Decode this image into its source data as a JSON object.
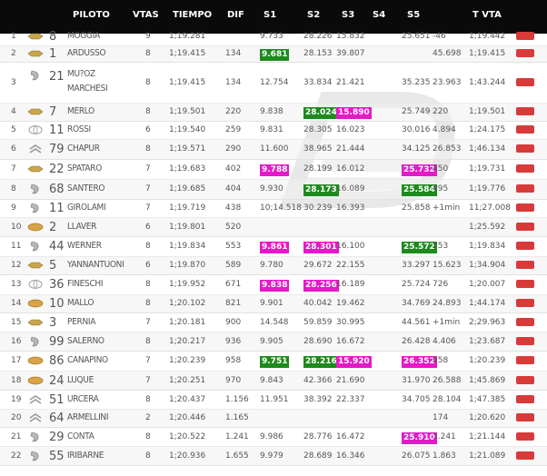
{
  "table": {
    "headers": {
      "piloto": "PILOTO",
      "vtas": "VTAS",
      "tiempo": "TIEMPO",
      "dif": "DIF",
      "s1": "S1",
      "s2": "S2",
      "s3": "S3",
      "s4": "S4",
      "s5": "S5",
      "tvta": "T VTA"
    },
    "colors": {
      "sector_best_green": "#1d8a1d",
      "sector_best_magenta": "#e619c8",
      "action_button": "#d83a3a"
    },
    "rows": [
      {
        "pos": "1",
        "num": "8",
        "name": "MOGGIA",
        "name2": "",
        "vtas": "9",
        "tiempo": "1;19.281",
        "dif": "",
        "s1": "9.733",
        "s2": "28.226",
        "s3": "15.832",
        "s5": "25.651",
        "s5b": "-46",
        "tvta": "1;19.442",
        "logo": "chevrolet"
      },
      {
        "pos": "2",
        "num": "1",
        "name": "ARDUSSO",
        "name2": "",
        "vtas": "8",
        "tiempo": "1;19.415",
        "dif": "134",
        "s1": "9.681",
        "s1h": "g",
        "s2": "28.153",
        "s3": "39.807",
        "s5": "",
        "s5b": "45.698",
        "tvta": "1;19.415",
        "logo": "chevrolet"
      },
      {
        "pos": "3",
        "num": "21",
        "name": "MU?OZ",
        "name2": "MARCHESI",
        "vtas": "8",
        "tiempo": "1;19.415",
        "dif": "134",
        "s1": "12.754",
        "s2": "33.834",
        "s3": "21.421",
        "s5": "35.235",
        "s5b": "23.963",
        "tvta": "1;43.244",
        "logo": "peugeot"
      },
      {
        "pos": "4",
        "num": "7",
        "name": "MERLO",
        "name2": "",
        "vtas": "8",
        "tiempo": "1;19.501",
        "dif": "220",
        "s1": "9.838",
        "s2": "28.024",
        "s2h": "g",
        "s3": "15.890",
        "s3h": "m",
        "s5": "25.749",
        "s5b": "220",
        "tvta": "1;19.501",
        "logo": "chevrolet"
      },
      {
        "pos": "5",
        "num": "11",
        "name": "ROSSI",
        "name2": "",
        "vtas": "6",
        "tiempo": "1;19.540",
        "dif": "259",
        "s1": "9.831",
        "s2": "28.305",
        "s3": "16.023",
        "s5": "30.016",
        "s5b": "4.894",
        "tvta": "1;24.175",
        "logo": "toyota"
      },
      {
        "pos": "6",
        "num": "79",
        "name": "CHAPUR",
        "name2": "",
        "vtas": "8",
        "tiempo": "1;19.571",
        "dif": "290",
        "s1": "11.600",
        "s2": "38.965",
        "s3": "21.444",
        "s5": "34.125",
        "s5b": "26.853",
        "tvta": "1;46.134",
        "logo": "citroen"
      },
      {
        "pos": "7",
        "num": "22",
        "name": "SPATARO",
        "name2": "",
        "vtas": "7",
        "tiempo": "1;19.683",
        "dif": "402",
        "s1": "9.788",
        "s1h": "m",
        "s2": "28.199",
        "s3": "16.012",
        "s5": "25.732",
        "s5h": "m",
        "s5b": "450",
        "tvta": "1;19.731",
        "logo": "chevrolet"
      },
      {
        "pos": "8",
        "num": "68",
        "name": "SANTERO",
        "name2": "",
        "vtas": "7",
        "tiempo": "1;19.685",
        "dif": "404",
        "s1": "9.930",
        "s2": "28.173",
        "s2h": "g",
        "s3": "16.089",
        "s5": "25.584",
        "s5h": "g",
        "s5b": "495",
        "tvta": "1;19.776",
        "logo": "peugeot"
      },
      {
        "pos": "9",
        "num": "11",
        "name": "GIROLAMI",
        "name2": "",
        "vtas": "7",
        "tiempo": "1;19.719",
        "dif": "438",
        "s1": "10;14.518",
        "s2": "30.239",
        "s3": "16.393",
        "s5": "25.858",
        "s5b": "+1min",
        "tvta": "11;27.008",
        "logo": "peugeot"
      },
      {
        "pos": "10",
        "num": "2",
        "name": "LLAVER",
        "name2": "",
        "vtas": "6",
        "tiempo": "1;19.801",
        "dif": "520",
        "s1": "",
        "s2": "",
        "s3": "",
        "s5": "",
        "s5b": "",
        "tvta": "1;25.592",
        "logo": "ford"
      },
      {
        "pos": "11",
        "num": "44",
        "name": "WERNER",
        "name2": "",
        "vtas": "8",
        "tiempo": "1;19.834",
        "dif": "553",
        "s1": "9.861",
        "s1h": "m",
        "s2": "28.301",
        "s2h": "m",
        "s3": "16.100",
        "s5": "25.572",
        "s5h": "g",
        "s5b": "553",
        "tvta": "1;19.834",
        "logo": "peugeot"
      },
      {
        "pos": "12",
        "num": "5",
        "name": "YANNANTUONI",
        "name2": "",
        "vtas": "6",
        "tiempo": "1;19.870",
        "dif": "589",
        "s1": "9.780",
        "s2": "29.672",
        "s3": "22.155",
        "s5": "33.297",
        "s5b": "15.623",
        "tvta": "1;34.904",
        "logo": "chevrolet"
      },
      {
        "pos": "13",
        "num": "36",
        "name": "FINESCHI",
        "name2": "",
        "vtas": "8",
        "tiempo": "1;19.952",
        "dif": "671",
        "s1": "9.838",
        "s1h": "m",
        "s2": "28.256",
        "s2h": "m",
        "s3": "16.189",
        "s5": "25.724",
        "s5b": "726",
        "tvta": "1;20.007",
        "logo": "toyota"
      },
      {
        "pos": "14",
        "num": "10",
        "name": "MALLO",
        "name2": "",
        "vtas": "8",
        "tiempo": "1;20.102",
        "dif": "821",
        "s1": "9.901",
        "s2": "40.042",
        "s3": "19.462",
        "s5": "34.769",
        "s5b": "24.893",
        "tvta": "1;44.174",
        "logo": "ford"
      },
      {
        "pos": "15",
        "num": "3",
        "name": "PERNIA",
        "name2": "",
        "vtas": "7",
        "tiempo": "1;20.181",
        "dif": "900",
        "s1": "14.548",
        "s2": "59.859",
        "s3": "30.995",
        "s5": "44.561",
        "s5b": "+1min",
        "tvta": "2;29.963",
        "logo": "chevrolet"
      },
      {
        "pos": "16",
        "num": "99",
        "name": "SALERNO",
        "name2": "",
        "vtas": "8",
        "tiempo": "1;20.217",
        "dif": "936",
        "s1": "9.905",
        "s2": "28.690",
        "s3": "16.672",
        "s5": "26.428",
        "s5b": "4.406",
        "tvta": "1;23.687",
        "logo": "peugeot"
      },
      {
        "pos": "17",
        "num": "86",
        "name": "CANAPINO",
        "name2": "",
        "vtas": "7",
        "tiempo": "1;20.239",
        "dif": "958",
        "s1": "9.751",
        "s1h": "g",
        "s2": "28.216",
        "s2h": "g",
        "s3": "15.920",
        "s3h": "m",
        "s5": "26.352",
        "s5h": "m",
        "s5b": "958",
        "tvta": "1;20.239",
        "logo": "ford"
      },
      {
        "pos": "18",
        "num": "24",
        "name": "LUQUE",
        "name2": "",
        "vtas": "7",
        "tiempo": "1;20.251",
        "dif": "970",
        "s1": "9.843",
        "s2": "42.366",
        "s3": "21.690",
        "s5": "31.970",
        "s5b": "26.588",
        "tvta": "1;45.869",
        "logo": "ford"
      },
      {
        "pos": "19",
        "num": "51",
        "name": "URCERA",
        "name2": "",
        "vtas": "8",
        "tiempo": "1;20.437",
        "dif": "1.156",
        "s1": "11.951",
        "s2": "38.392",
        "s3": "22.337",
        "s5": "34.705",
        "s5b": "28.104",
        "tvta": "1;47.385",
        "logo": "citroen"
      },
      {
        "pos": "20",
        "num": "64",
        "name": "ARMELLINI",
        "name2": "",
        "vtas": "2",
        "tiempo": "1;20.446",
        "dif": "1.165",
        "s1": "",
        "s2": "",
        "s3": "",
        "s5": "",
        "s5b": "174",
        "tvta": "1;20.620",
        "logo": "citroen"
      },
      {
        "pos": "21",
        "num": "29",
        "name": "CONTA",
        "name2": "",
        "vtas": "8",
        "tiempo": "1;20.522",
        "dif": "1.241",
        "s1": "9.986",
        "s2": "28.776",
        "s3": "16.472",
        "s5": "25.910",
        "s5h": "m",
        "s5b": "1.241",
        "tvta": "1;21.144",
        "logo": "peugeot"
      },
      {
        "pos": "22",
        "num": "55",
        "name": "IRIBARNE",
        "name2": "",
        "vtas": "8",
        "tiempo": "1;20.936",
        "dif": "1.655",
        "s1": "9.979",
        "s2": "28.689",
        "s3": "16.346",
        "s5": "26.075",
        "s5b": "1.863",
        "tvta": "1;21.089",
        "logo": "peugeot"
      }
    ]
  }
}
